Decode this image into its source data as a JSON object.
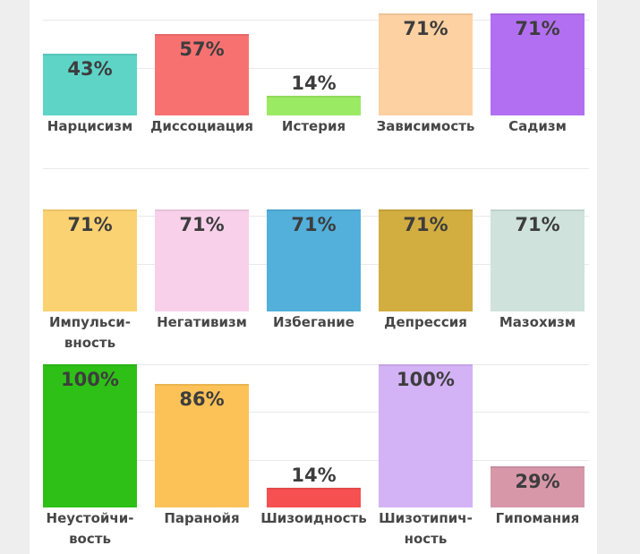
{
  "chart_data": {
    "type": "bar",
    "ylim": [
      0,
      100
    ],
    "grid": true,
    "value_suffix": "%",
    "rows": [
      {
        "bars": [
          {
            "label": "Нарцисизм",
            "value": 43,
            "color": "#5dd4c6"
          },
          {
            "label": "Диссоциация",
            "value": 57,
            "color": "#f87171"
          },
          {
            "label": "Истерия",
            "value": 14,
            "color": "#9bea63"
          },
          {
            "label": "Зависимость",
            "value": 71,
            "color": "#fdd1a1"
          },
          {
            "label": "Садизм",
            "value": 71,
            "color": "#b36ff2"
          }
        ]
      },
      {
        "bars": [
          {
            "label": "Импульси-\nвность",
            "value": 71,
            "color": "#fbd272"
          },
          {
            "label": "Негативизм",
            "value": 71,
            "color": "#f8d0ea"
          },
          {
            "label": "Избегание",
            "value": 71,
            "color": "#52b0db"
          },
          {
            "label": "Депрессия",
            "value": 71,
            "color": "#d2ad40"
          },
          {
            "label": "Мазохизм",
            "value": 71,
            "color": "#cfe2dc"
          }
        ]
      },
      {
        "bars": [
          {
            "label": "Неустойчи-\nвость",
            "value": 100,
            "color": "#2ec016"
          },
          {
            "label": "Паранойя",
            "value": 86,
            "color": "#fcc257"
          },
          {
            "label": "Шизоидность",
            "value": 14,
            "color": "#f65050"
          },
          {
            "label": "Шизотипич-\nность",
            "value": 100,
            "color": "#d3b2f6"
          },
          {
            "label": "Гипомания",
            "value": 29,
            "color": "#d797a9"
          }
        ]
      }
    ]
  }
}
